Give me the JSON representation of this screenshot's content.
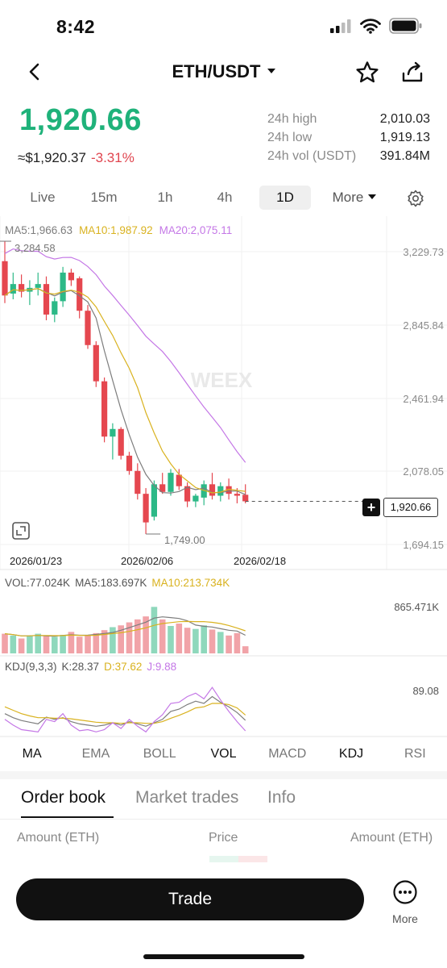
{
  "status_bar": {
    "time": "8:42"
  },
  "header": {
    "pair": "ETH/USDT"
  },
  "price": {
    "last": "1,920.66",
    "fiat": "≈$1,920.37",
    "change": "-3.31%",
    "stats": [
      {
        "label": "24h high",
        "value": "2,010.03"
      },
      {
        "label": "24h low",
        "value": "1,919.13"
      },
      {
        "label": "24h vol (USDT)",
        "value": "391.84M"
      }
    ]
  },
  "timeframes": [
    {
      "label": "Live"
    },
    {
      "label": "15m"
    },
    {
      "label": "1h"
    },
    {
      "label": "4h"
    },
    {
      "label": "1D",
      "active": true
    },
    {
      "label": "More"
    }
  ],
  "chart": {
    "ma_legend": {
      "ma5": "MA5:1,966.63",
      "ma10": "MA10:1,987.92",
      "ma20": "MA20:2,075.11"
    },
    "y_ticks": [
      "3,229.73",
      "2,845.84",
      "2,461.94",
      "2,078.05",
      "1,694.15"
    ],
    "dates": [
      "2026/01/23",
      "2026/02/06",
      "2026/02/18"
    ],
    "high_annotation": "3,284.58",
    "low_annotation": "1,749.00",
    "current_price": "1,920.66",
    "watermark": "WEEX",
    "volume_legend": {
      "vol": "VOL:77.024K",
      "ma5": "MA5:183.697K",
      "ma10": "MA10:213.734K"
    },
    "volume_max": "865.471K",
    "kdj_legend": {
      "label": "KDJ(9,3,3)",
      "k": "K:28.37",
      "d": "D:37.62",
      "j": "J:9.88"
    },
    "kdj_max": "89.08"
  },
  "colors": {
    "up": "#2cb987",
    "down": "#e5474f",
    "ma5": "#7d7d7d",
    "ma10": "#d9b21f",
    "ma20": "#c477e6"
  },
  "chart_data": {
    "type": "candlestick",
    "interval": "1D",
    "dates_shown": [
      "2026/01/23",
      "2026/02/06",
      "2026/02/18"
    ],
    "ylim": [
      1694.15,
      3229.73
    ],
    "candles": [
      [
        3180,
        3284.58,
        2960,
        3000
      ],
      [
        3010,
        3120,
        2980,
        3060
      ],
      [
        3060,
        3110,
        2990,
        3020
      ],
      [
        3020,
        3080,
        2950,
        3040
      ],
      [
        3040,
        3120,
        3000,
        3060
      ],
      [
        3060,
        3100,
        2870,
        2900
      ],
      [
        2900,
        2990,
        2860,
        2970
      ],
      [
        2970,
        3150,
        2940,
        3120
      ],
      [
        3120,
        3140,
        3050,
        3080
      ],
      [
        3090,
        3100,
        2880,
        2920
      ],
      [
        2920,
        2950,
        2720,
        2740
      ],
      [
        2740,
        2760,
        2520,
        2550
      ],
      [
        2550,
        2570,
        2230,
        2260
      ],
      [
        2260,
        2330,
        2140,
        2300
      ],
      [
        2300,
        2310,
        2140,
        2160
      ],
      [
        2160,
        2180,
        2060,
        2080
      ],
      [
        2080,
        2120,
        1930,
        1960
      ],
      [
        1960,
        1990,
        1749.0,
        1810
      ],
      [
        1840,
        2030,
        1820,
        2010
      ],
      [
        2010,
        2070,
        1960,
        1970
      ],
      [
        1970,
        2090,
        1950,
        2070
      ],
      [
        2060,
        2090,
        1980,
        2000
      ],
      [
        2000,
        2020,
        1890,
        1920
      ],
      [
        1920,
        1960,
        1890,
        1950
      ],
      [
        1940,
        2030,
        1900,
        2010
      ],
      [
        2010,
        2070,
        1930,
        1950
      ],
      [
        1950,
        2020,
        1920,
        2000
      ],
      [
        2000,
        2040,
        1930,
        1960
      ],
      [
        1960,
        1990,
        1910,
        1950
      ],
      [
        1955,
        2010.03,
        1910,
        1920.66
      ]
    ],
    "volume": [
      330,
      300,
      250,
      300,
      330,
      290,
      280,
      310,
      360,
      280,
      300,
      340,
      390,
      440,
      470,
      520,
      570,
      620,
      780,
      570,
      460,
      500,
      430,
      410,
      470,
      400,
      360,
      300,
      340,
      120
    ],
    "volume_max": 865.471,
    "kdj_max": 89.08
  }
}
